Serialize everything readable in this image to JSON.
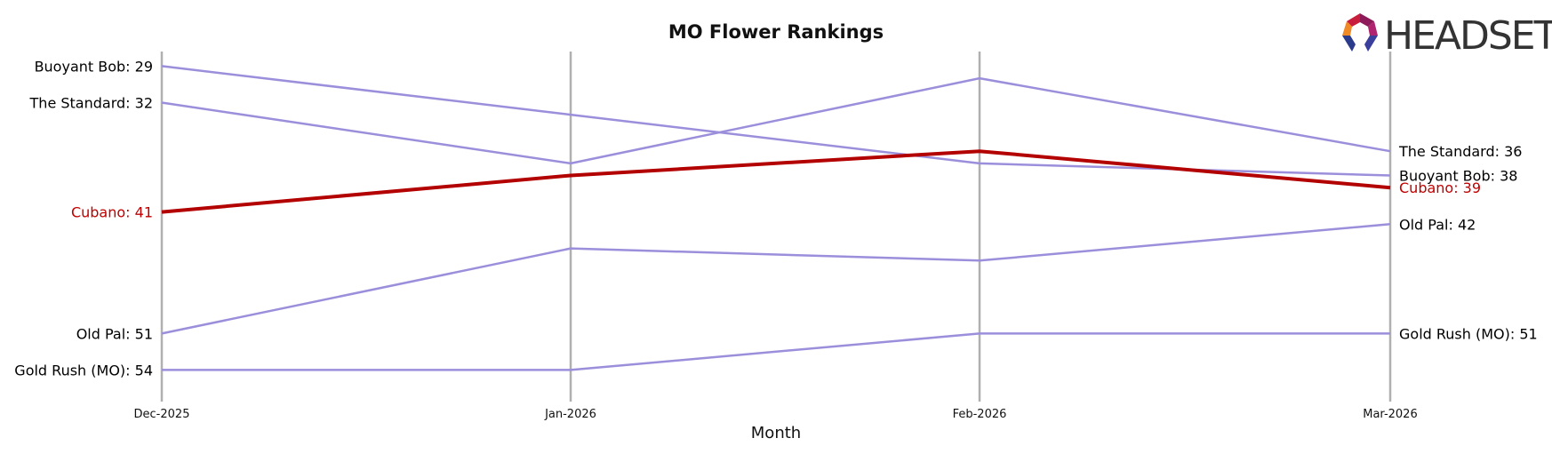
{
  "chart_data": {
    "type": "line",
    "title": "MO Flower Rankings",
    "xlabel": "Month",
    "ylabel": "",
    "categories": [
      "Dec-2025",
      "Jan-2026",
      "Feb-2026",
      "Mar-2026"
    ],
    "y_inverted": true,
    "ylim": [
      27.8,
      56.6
    ],
    "grid": "vertical lines at each month",
    "highlight_series": "Cubano",
    "series": [
      {
        "name": "Buoyant Bob",
        "values": [
          29,
          33,
          37,
          38
        ],
        "start_label": "Buoyant Bob: 29",
        "end_label": "Buoyant Bob: 38",
        "highlight": false
      },
      {
        "name": "The Standard",
        "values": [
          32,
          37,
          30,
          36
        ],
        "start_label": "The Standard: 32",
        "end_label": "The Standard: 36",
        "highlight": false
      },
      {
        "name": "Cubano",
        "values": [
          41,
          38,
          36,
          39
        ],
        "start_label": "Cubano: 41",
        "end_label": "Cubano: 39",
        "highlight": true
      },
      {
        "name": "Old Pal",
        "values": [
          51,
          44,
          45,
          42
        ],
        "start_label": "Old Pal: 51",
        "end_label": "Old Pal: 42",
        "highlight": false
      },
      {
        "name": "Gold Rush (MO)",
        "values": [
          54,
          54,
          51,
          51
        ],
        "start_label": "Gold Rush (MO): 54",
        "end_label": "Gold Rush (MO): 51",
        "highlight": false
      }
    ],
    "colors": {
      "default_line": "#9b8fdc",
      "highlight_line": "#b30000",
      "highlight_text": "#c00000",
      "default_text": "#000000",
      "gridline": "#b0b0b0"
    }
  },
  "logo": {
    "text": "HEADSET"
  }
}
